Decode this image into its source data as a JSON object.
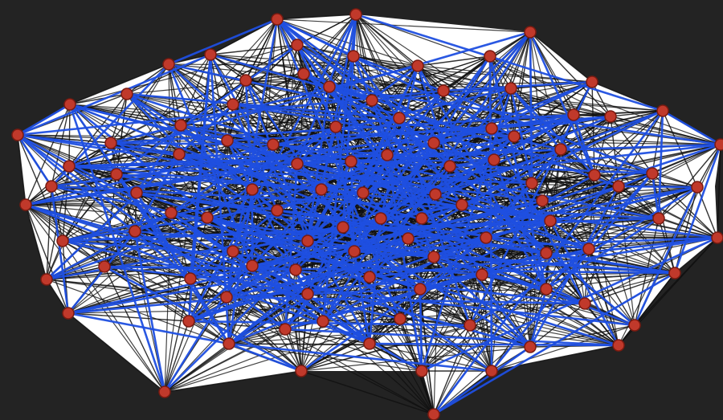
{
  "diagram": {
    "type": "network-graph",
    "colors": {
      "background": "#232323",
      "hull_fill": "#ffffff",
      "edge_black": "#101010",
      "edge_blue": "#1f4fe0",
      "node_fill": "#c0392b",
      "node_stroke": "#7a1a10"
    }
  }
}
